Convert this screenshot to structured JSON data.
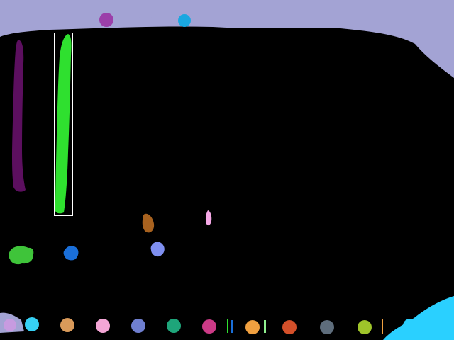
{
  "canvas": {
    "background": "#000000"
  },
  "palette": {
    "top_band_color": "#a3a3d4",
    "top_swatches": [
      {
        "name": "purple",
        "color": "#9b3fa9"
      },
      {
        "name": "lavender",
        "color": "#a3a3d4"
      },
      {
        "name": "cyan",
        "color": "#1aa7e0"
      }
    ],
    "bottom_swatches": [
      {
        "name": "light-purple",
        "color": "#c79be0"
      },
      {
        "name": "sky-blue",
        "color": "#36d0f4"
      },
      {
        "name": "tan",
        "color": "#d99a5a"
      },
      {
        "name": "pink",
        "color": "#f4a6d6"
      },
      {
        "name": "periwinkle",
        "color": "#6f7fd0"
      },
      {
        "name": "teal",
        "color": "#1ea57a"
      },
      {
        "name": "magenta",
        "color": "#cc3a86"
      },
      {
        "name": "orange",
        "color": "#f0a040"
      },
      {
        "name": "red-orange",
        "color": "#d4502a"
      },
      {
        "name": "slate",
        "color": "#5e6d7c"
      },
      {
        "name": "lime",
        "color": "#9fc42a"
      },
      {
        "name": "bright-cyan",
        "color": "#2ad0ff"
      }
    ]
  },
  "strokes": [
    {
      "name": "dark-purple-stroke",
      "color": "#5c0f5f"
    },
    {
      "name": "green-stroke",
      "color": "#2fe02f"
    }
  ],
  "blots": [
    {
      "name": "green-blot",
      "color": "#3fc43a"
    },
    {
      "name": "blue-blot",
      "color": "#1a6fd9"
    },
    {
      "name": "brown-blot",
      "color": "#a8621f"
    },
    {
      "name": "periwinkle-blot",
      "color": "#7f8ff0"
    },
    {
      "name": "pink-blot",
      "color": "#f5a8e6"
    }
  ]
}
